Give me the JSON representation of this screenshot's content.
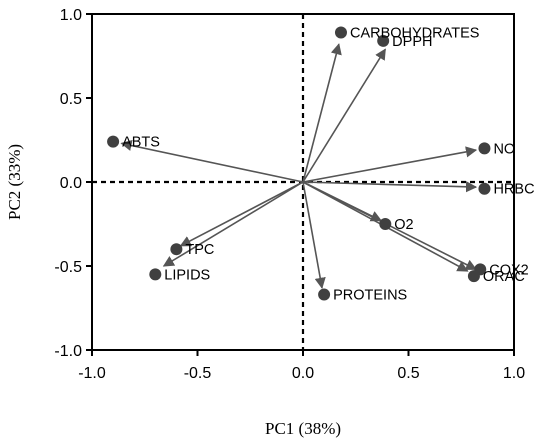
{
  "chart_data": {
    "type": "scatter",
    "subtype": "pca-biplot",
    "xlabel": "PC1 (38%)",
    "ylabel": "PC2 (33%)",
    "xlim": [
      -1.0,
      1.0
    ],
    "ylim": [
      -1.0,
      1.0
    ],
    "x_ticks": [
      -1.0,
      -0.5,
      0.0,
      0.5,
      1.0
    ],
    "y_ticks": [
      -1.0,
      -0.5,
      0.0,
      0.5,
      1.0
    ],
    "x_tick_labels": [
      "-1.0",
      "-0.5",
      "0.0",
      "0.5",
      "1.0"
    ],
    "y_tick_labels": [
      "-1.0",
      "-0.5",
      "0.0",
      "0.5",
      "1.0"
    ],
    "zero_lines": "dashed",
    "grid": false,
    "colors": {
      "vector": "#555555",
      "point": "#404040",
      "axis": "#000000"
    },
    "points": [
      {
        "label": "CARBOHYDRATES",
        "x": 0.18,
        "y": 0.89,
        "vector_end": [
          0.17,
          0.82
        ]
      },
      {
        "label": "DPPH",
        "x": 0.38,
        "y": 0.84,
        "vector_end": [
          0.39,
          0.79
        ]
      },
      {
        "label": "ABTS",
        "x": -0.9,
        "y": 0.24,
        "vector_end": [
          -0.86,
          0.23
        ]
      },
      {
        "label": "NO",
        "x": 0.86,
        "y": 0.2,
        "vector_end": [
          0.82,
          0.19
        ]
      },
      {
        "label": "HRBC",
        "x": 0.86,
        "y": -0.04,
        "vector_end": [
          0.82,
          -0.03
        ]
      },
      {
        "label": "O2",
        "x": 0.39,
        "y": -0.25,
        "vector_end": [
          0.37,
          -0.23
        ]
      },
      {
        "label": "COX2",
        "x": 0.84,
        "y": -0.52,
        "vector_end": [
          0.82,
          -0.52
        ]
      },
      {
        "label": "ORAC",
        "x": 0.81,
        "y": -0.56,
        "vector_end": [
          0.78,
          -0.53
        ]
      },
      {
        "label": "TPC",
        "x": -0.6,
        "y": -0.4,
        "vector_end": [
          -0.58,
          -0.38
        ]
      },
      {
        "label": "LIPIDS",
        "x": -0.7,
        "y": -0.55,
        "vector_end": [
          -0.66,
          -0.5
        ]
      },
      {
        "label": "PROTEINS",
        "x": 0.1,
        "y": -0.67,
        "vector_end": [
          0.09,
          -0.63
        ]
      }
    ]
  }
}
